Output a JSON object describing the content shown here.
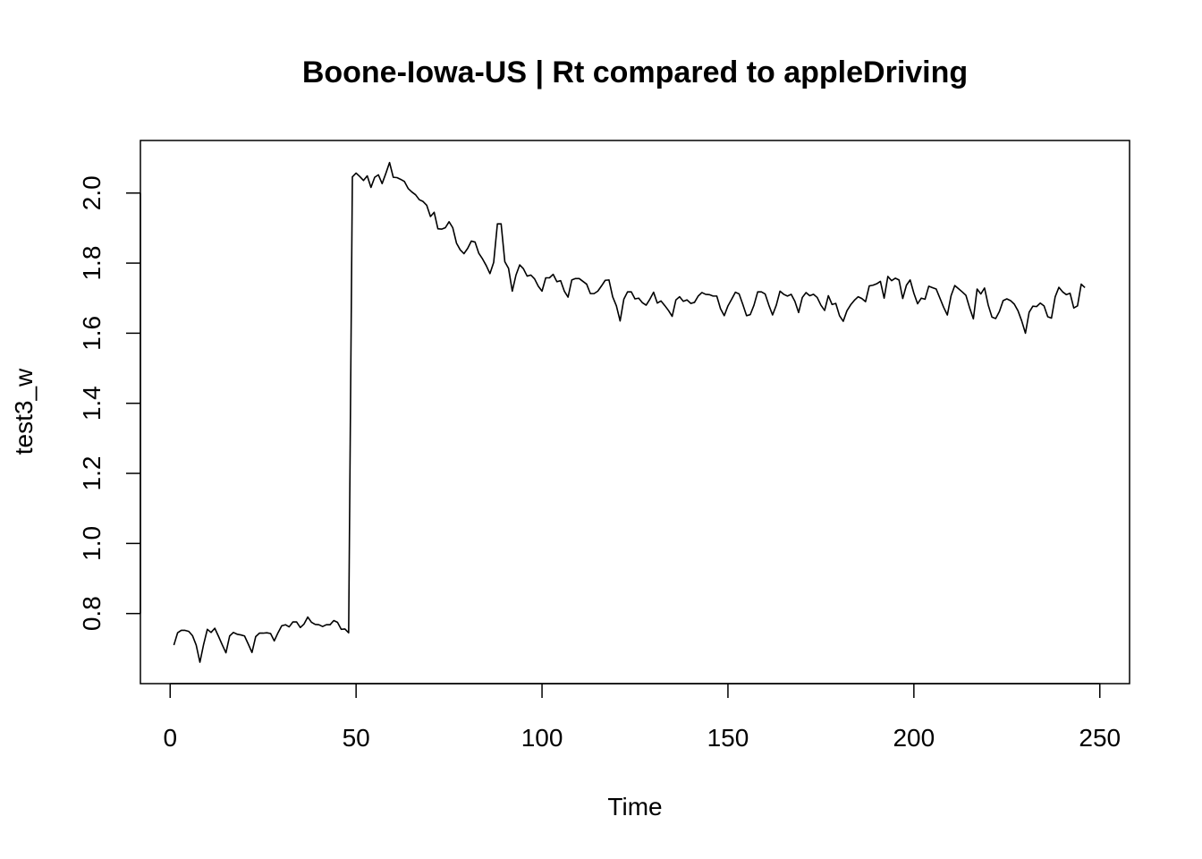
{
  "chart_data": {
    "type": "line",
    "title": "Boone-Iowa-US | Rt compared to appleDriving",
    "xlabel": "Time",
    "ylabel": "test3_w",
    "xlim": [
      -8,
      258
    ],
    "ylim": [
      0.6,
      2.15
    ],
    "x_ticks": [
      0,
      50,
      100,
      150,
      200,
      250
    ],
    "y_ticks": [
      0.8,
      1.0,
      1.2,
      1.4,
      1.6,
      1.8,
      2.0
    ],
    "y_tick_labels": [
      "0.8",
      "1.0",
      "1.2",
      "1.4",
      "1.6",
      "1.8",
      "2.0"
    ],
    "grid": false,
    "line_color": "#000000",
    "series": [
      {
        "x_start": 1,
        "values": [
          0.71,
          0.745,
          0.752,
          0.752,
          0.749,
          0.737,
          0.71,
          0.661,
          0.712,
          0.755,
          0.746,
          0.758,
          0.735,
          0.711,
          0.688,
          0.736,
          0.746,
          0.741,
          0.739,
          0.736,
          0.713,
          0.689,
          0.734,
          0.744,
          0.744,
          0.745,
          0.743,
          0.722,
          0.745,
          0.765,
          0.768,
          0.762,
          0.776,
          0.776,
          0.76,
          0.77,
          0.79,
          0.775,
          0.769,
          0.768,
          0.763,
          0.768,
          0.768,
          0.78,
          0.775,
          0.755,
          0.756,
          0.745,
          2.046,
          2.057,
          2.047,
          2.036,
          2.049,
          2.016,
          2.045,
          2.052,
          2.027,
          2.056,
          2.087,
          2.045,
          2.044,
          2.039,
          2.033,
          2.013,
          2.003,
          1.995,
          1.981,
          1.976,
          1.965,
          1.933,
          1.945,
          1.898,
          1.897,
          1.901,
          1.918,
          1.901,
          1.857,
          1.838,
          1.827,
          1.842,
          1.863,
          1.86,
          1.828,
          1.812,
          1.793,
          1.77,
          1.802,
          1.912,
          1.912,
          1.804,
          1.785,
          1.72,
          1.766,
          1.795,
          1.784,
          1.763,
          1.766,
          1.755,
          1.734,
          1.72,
          1.758,
          1.758,
          1.768,
          1.747,
          1.75,
          1.72,
          1.703,
          1.752,
          1.756,
          1.756,
          1.748,
          1.74,
          1.713,
          1.713,
          1.72,
          1.735,
          1.751,
          1.752,
          1.704,
          1.678,
          1.635,
          1.697,
          1.718,
          1.718,
          1.698,
          1.7,
          1.687,
          1.68,
          1.697,
          1.717,
          1.686,
          1.692,
          1.679,
          1.665,
          1.648,
          1.695,
          1.704,
          1.691,
          1.695,
          1.685,
          1.688,
          1.706,
          1.716,
          1.711,
          1.71,
          1.706,
          1.706,
          1.67,
          1.65,
          1.678,
          1.697,
          1.717,
          1.712,
          1.682,
          1.65,
          1.653,
          1.68,
          1.718,
          1.718,
          1.712,
          1.68,
          1.652,
          1.68,
          1.72,
          1.711,
          1.706,
          1.711,
          1.691,
          1.659,
          1.702,
          1.716,
          1.707,
          1.711,
          1.702,
          1.68,
          1.665,
          1.707,
          1.682,
          1.685,
          1.65,
          1.634,
          1.664,
          1.681,
          1.694,
          1.704,
          1.699,
          1.69,
          1.735,
          1.737,
          1.741,
          1.748,
          1.7,
          1.762,
          1.75,
          1.757,
          1.752,
          1.699,
          1.737,
          1.752,
          1.714,
          1.684,
          1.7,
          1.697,
          1.734,
          1.73,
          1.726,
          1.7,
          1.674,
          1.652,
          1.707,
          1.736,
          1.727,
          1.718,
          1.708,
          1.672,
          1.641,
          1.726,
          1.712,
          1.729,
          1.68,
          1.646,
          1.642,
          1.662,
          1.693,
          1.698,
          1.693,
          1.683,
          1.664,
          1.635,
          1.6,
          1.66,
          1.677,
          1.676,
          1.686,
          1.678,
          1.647,
          1.643,
          1.704,
          1.731,
          1.718,
          1.71,
          1.714,
          1.672,
          1.678,
          1.74,
          1.73
        ]
      }
    ]
  }
}
